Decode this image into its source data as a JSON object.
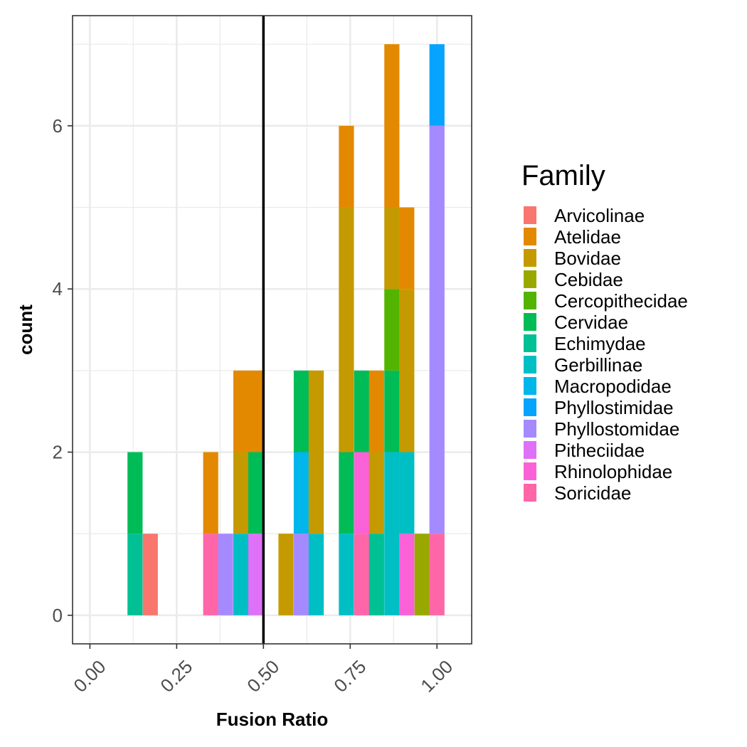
{
  "chart_data": {
    "type": "bar",
    "subtype": "stacked-histogram",
    "xlabel": "Fusion Ratio",
    "ylabel": "count",
    "xlim": [
      -0.05,
      1.1
    ],
    "ylim": [
      -0.35,
      7.35
    ],
    "x_ticks": [
      0.0,
      0.25,
      0.5,
      0.75,
      1.0
    ],
    "x_tick_labels": [
      "0.00",
      "0.25",
      "0.50",
      "0.75",
      "1.00"
    ],
    "y_ticks": [
      0,
      2,
      4,
      6
    ],
    "y_tick_labels": [
      "0",
      "2",
      "4",
      "6"
    ],
    "x_minor_breaks": [
      0.125,
      0.375,
      0.625,
      0.875
    ],
    "y_minor_breaks": [
      1,
      3,
      5,
      7
    ],
    "bin_width": 0.0435,
    "reference_line_x": 0.5,
    "grid": true,
    "legend": {
      "title": "Family",
      "placement": "right"
    },
    "families": [
      {
        "name": "Arvicolinae",
        "color": "#F8766D"
      },
      {
        "name": "Atelidae",
        "color": "#E38900"
      },
      {
        "name": "Bovidae",
        "color": "#C49A00"
      },
      {
        "name": "Cebidae",
        "color": "#99A800"
      },
      {
        "name": "Cercopithecidae",
        "color": "#53B400"
      },
      {
        "name": "Cervidae",
        "color": "#00BC56"
      },
      {
        "name": "Echimydae",
        "color": "#00C094"
      },
      {
        "name": "Gerbillinae",
        "color": "#00BFC4"
      },
      {
        "name": "Macropodidae",
        "color": "#00B6EB"
      },
      {
        "name": "Phyllostimidae",
        "color": "#06A4FF"
      },
      {
        "name": "Phyllostomidae",
        "color": "#A58AFF"
      },
      {
        "name": "Pitheciidae",
        "color": "#DF70F8"
      },
      {
        "name": "Rhinolophidae",
        "color": "#FB61D7"
      },
      {
        "name": "Soricidae",
        "color": "#FF66A8"
      }
    ],
    "bars": [
      {
        "x": 0.13,
        "family": "Echimydae",
        "y0": 0,
        "y1": 1
      },
      {
        "x": 0.13,
        "family": "Cervidae",
        "y0": 1,
        "y1": 2
      },
      {
        "x": 0.174,
        "family": "Arvicolinae",
        "y0": 0,
        "y1": 1
      },
      {
        "x": 0.348,
        "family": "Soricidae",
        "y0": 0,
        "y1": 1
      },
      {
        "x": 0.348,
        "family": "Atelidae",
        "y0": 1,
        "y1": 2
      },
      {
        "x": 0.391,
        "family": "Phyllostomidae",
        "y0": 0,
        "y1": 1
      },
      {
        "x": 0.435,
        "family": "Gerbillinae",
        "y0": 0,
        "y1": 1
      },
      {
        "x": 0.435,
        "family": "Bovidae",
        "y0": 1,
        "y1": 2
      },
      {
        "x": 0.435,
        "family": "Atelidae",
        "y0": 2,
        "y1": 3
      },
      {
        "x": 0.478,
        "family": "Pitheciidae",
        "y0": 0,
        "y1": 1
      },
      {
        "x": 0.478,
        "family": "Cervidae",
        "y0": 1,
        "y1": 2
      },
      {
        "x": 0.478,
        "family": "Atelidae",
        "y0": 2,
        "y1": 3
      },
      {
        "x": 0.565,
        "family": "Bovidae",
        "y0": 0,
        "y1": 1
      },
      {
        "x": 0.609,
        "family": "Phyllostomidae",
        "y0": 0,
        "y1": 1
      },
      {
        "x": 0.609,
        "family": "Macropodidae",
        "y0": 1,
        "y1": 2
      },
      {
        "x": 0.609,
        "family": "Cervidae",
        "y0": 2,
        "y1": 3
      },
      {
        "x": 0.652,
        "family": "Gerbillinae",
        "y0": 0,
        "y1": 1
      },
      {
        "x": 0.652,
        "family": "Bovidae",
        "y0": 1,
        "y1": 3
      },
      {
        "x": 0.739,
        "family": "Gerbillinae",
        "y0": 0,
        "y1": 1
      },
      {
        "x": 0.739,
        "family": "Cervidae",
        "y0": 1,
        "y1": 2
      },
      {
        "x": 0.739,
        "family": "Bovidae",
        "y0": 2,
        "y1": 5
      },
      {
        "x": 0.739,
        "family": "Atelidae",
        "y0": 5,
        "y1": 6
      },
      {
        "x": 0.783,
        "family": "Soricidae",
        "y0": 0,
        "y1": 1
      },
      {
        "x": 0.783,
        "family": "Rhinolophidae",
        "y0": 1,
        "y1": 2
      },
      {
        "x": 0.783,
        "family": "Cervidae",
        "y0": 2,
        "y1": 3
      },
      {
        "x": 0.826,
        "family": "Echimydae",
        "y0": 0,
        "y1": 1
      },
      {
        "x": 0.826,
        "family": "Bovidae",
        "y0": 1,
        "y1": 2
      },
      {
        "x": 0.826,
        "family": "Atelidae",
        "y0": 2,
        "y1": 3
      },
      {
        "x": 0.87,
        "family": "Gerbillinae",
        "y0": 0,
        "y1": 2
      },
      {
        "x": 0.87,
        "family": "Cervidae",
        "y0": 2,
        "y1": 3
      },
      {
        "x": 0.87,
        "family": "Cercopithecidae",
        "y0": 3,
        "y1": 4
      },
      {
        "x": 0.87,
        "family": "Bovidae",
        "y0": 4,
        "y1": 5
      },
      {
        "x": 0.87,
        "family": "Atelidae",
        "y0": 5,
        "y1": 7
      },
      {
        "x": 0.913,
        "family": "Rhinolophidae",
        "y0": 0,
        "y1": 1
      },
      {
        "x": 0.913,
        "family": "Gerbillinae",
        "y0": 1,
        "y1": 2
      },
      {
        "x": 0.913,
        "family": "Bovidae",
        "y0": 2,
        "y1": 4
      },
      {
        "x": 0.913,
        "family": "Atelidae",
        "y0": 4,
        "y1": 5
      },
      {
        "x": 0.957,
        "family": "Cebidae",
        "y0": 0,
        "y1": 1
      },
      {
        "x": 1.0,
        "family": "Soricidae",
        "y0": 0,
        "y1": 1
      },
      {
        "x": 1.0,
        "family": "Phyllostomidae",
        "y0": 1,
        "y1": 6
      },
      {
        "x": 1.0,
        "family": "Phyllostimidae",
        "y0": 6,
        "y1": 7
      }
    ]
  }
}
